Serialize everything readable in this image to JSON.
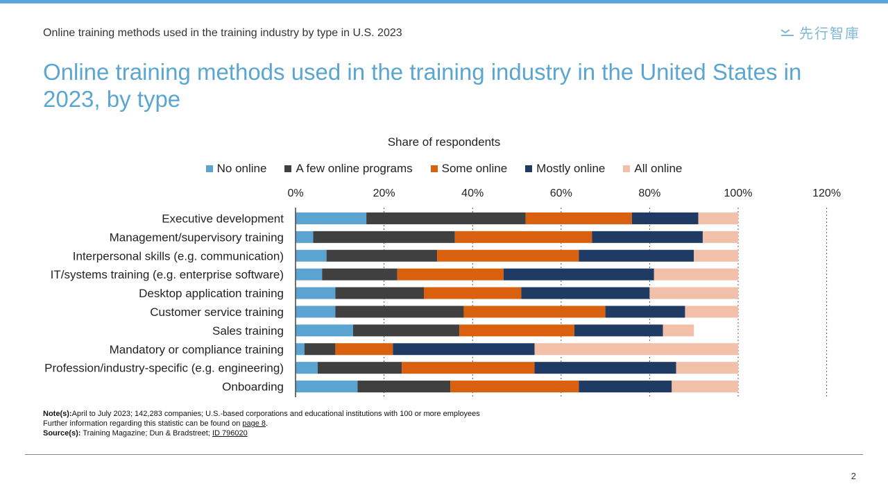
{
  "header": {
    "subtitle": "Online training methods used in the training industry by type in U.S. 2023",
    "logo_text": "先行智庫",
    "logo_icon": "wave-chevron-icon",
    "title": "Online training methods used in the training industry in the United States in 2023, by type"
  },
  "colors": {
    "accent": "#5aa6d1",
    "top_bar": "#5aa6dc",
    "no_online": "#5ba3d0",
    "a_few": "#404040",
    "some": "#d9600e",
    "mostly": "#1f3b63",
    "all": "#f2bfa9"
  },
  "chart_data": {
    "type": "bar",
    "orientation": "horizontal",
    "stacked": true,
    "title": "Share of respondents",
    "categories": [
      "Executive development",
      "Management/supervisory training",
      "Interpersonal skills (e.g. communication)",
      "IT/systems training (e.g. enterprise software)",
      "Desktop application training",
      "Customer service training",
      "Sales training",
      "Mandatory or compliance training",
      "Profession/industry-specific (e.g. engineering)",
      "Onboarding"
    ],
    "series": [
      {
        "name": "No online",
        "values": [
          16,
          4,
          7,
          6,
          9,
          9,
          13,
          2,
          5,
          14
        ]
      },
      {
        "name": "A few online programs",
        "values": [
          36,
          32,
          25,
          17,
          20,
          29,
          24,
          7,
          19,
          21
        ]
      },
      {
        "name": "Some online",
        "values": [
          24,
          31,
          32,
          24,
          22,
          32,
          26,
          13,
          30,
          29
        ]
      },
      {
        "name": "Mostly online",
        "values": [
          15,
          25,
          26,
          34,
          29,
          18,
          20,
          32,
          32,
          21
        ]
      },
      {
        "name": "All online",
        "values": [
          9,
          8,
          10,
          19,
          20,
          12,
          7,
          46,
          14,
          15
        ]
      }
    ],
    "xlim": [
      0,
      120
    ],
    "xticks": [
      "0%",
      "20%",
      "40%",
      "60%",
      "80%",
      "100%",
      "120%"
    ],
    "xlabel": "",
    "ylabel": "",
    "legend_position": "top",
    "grid": "vertical dashed"
  },
  "notes": {
    "note_label": "Note(s):",
    "note_text": "April to July 2023; 142,283 companies; U.S.-based corporations and educational institutions with 100 or more employees",
    "further_text": "Further  information regarding this statistic can be found on ",
    "further_link": "page 8",
    "further_end": ".",
    "source_label": "Source(s):",
    "source_text": " Training Magazine; Dun & Bradstreet; ",
    "source_id": "ID 796020"
  },
  "page_number": "2"
}
